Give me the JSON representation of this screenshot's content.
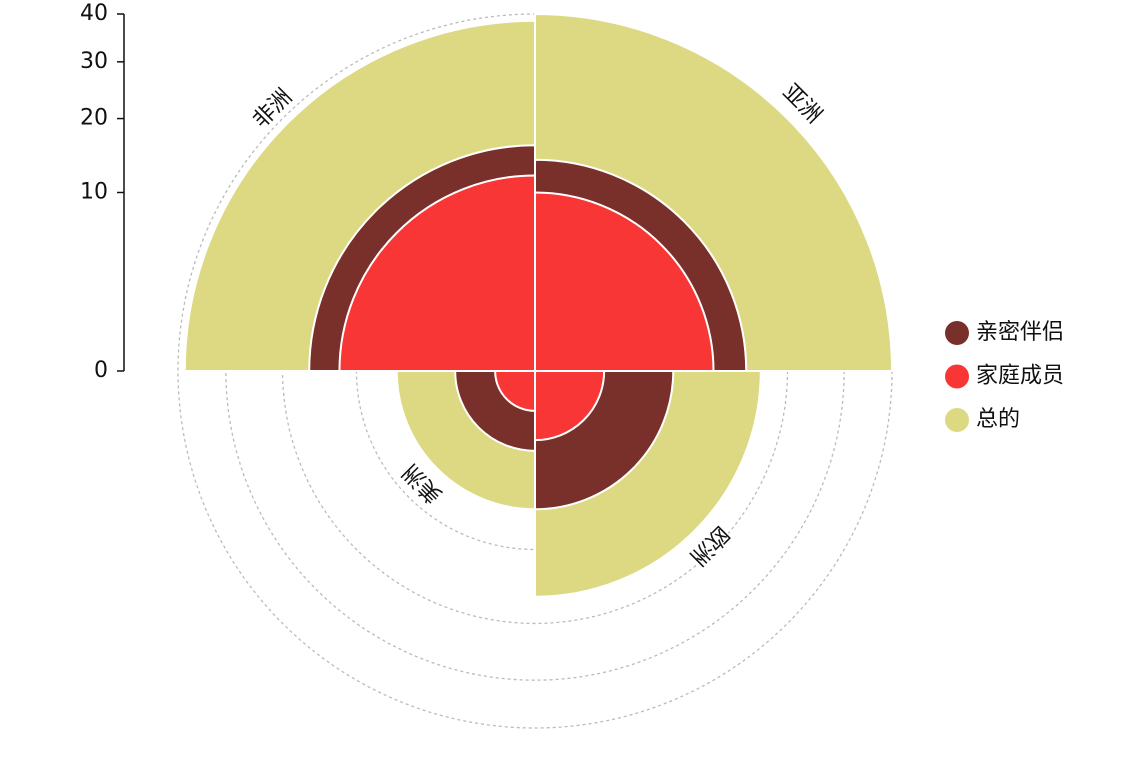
{
  "chart_data": {
    "type": "radial-bar",
    "categories": [
      "亚洲",
      "欧洲",
      "美洲",
      "非洲"
    ],
    "series": [
      {
        "name": "总的",
        "color": "#dcd982",
        "values": [
          40,
          16,
          6,
          38.5
        ]
      },
      {
        "name": "亲密伴侣",
        "color": "#7a302a",
        "values": [
          14,
          6,
          2,
          16
        ]
      },
      {
        "name": "家庭成员",
        "color": "#f93636",
        "values": [
          10,
          1.5,
          0.5,
          12
        ]
      }
    ],
    "legend_order": [
      1,
      2,
      0
    ],
    "ylim": [
      0,
      40
    ],
    "yticks": [
      0,
      10,
      20,
      30,
      40
    ],
    "scale": "sqrt",
    "grid": true
  }
}
